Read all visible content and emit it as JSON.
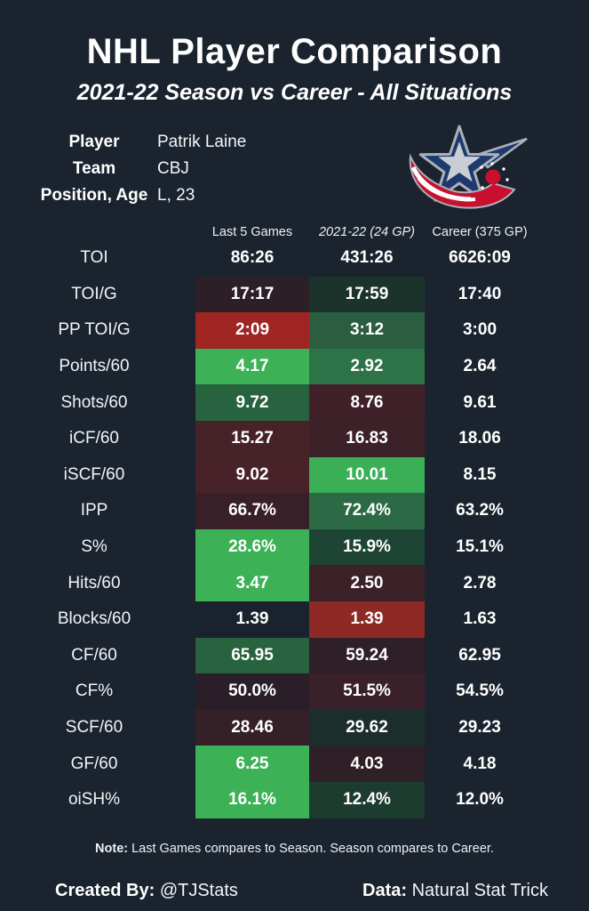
{
  "header": {
    "title": "NHL Player Comparison",
    "subtitle": "2021-22 Season vs Career - All Situations"
  },
  "player": {
    "label_player": "Player",
    "label_team": "Team",
    "label_position_age": "Position, Age",
    "name": "Patrik Laine",
    "team": "CBJ",
    "position_age": "L, 23",
    "logo_icon": "columbus-blue-jackets-logo"
  },
  "chart_data": {
    "type": "table",
    "title": "NHL Player Comparison",
    "subtitle": "2021-22 Season vs Career - All Situations",
    "columns": [
      "Last 5 Games",
      "2021-22 (24 GP)",
      "Career (375 GP)"
    ],
    "legend_note": "cell background encodes comparison: green = better, red = worse",
    "rows": [
      {
        "stat": "TOI",
        "last5": "86:26",
        "season": "431:26",
        "career": "6626:09",
        "last5_bg": "",
        "season_bg": ""
      },
      {
        "stat": "TOI/G",
        "last5": "17:17",
        "season": "17:59",
        "career": "17:40",
        "last5_bg": "#2c1f28",
        "season_bg": "#1c332c"
      },
      {
        "stat": "PP TOI/G",
        "last5": "2:09",
        "season": "3:12",
        "career": "3:00",
        "last5_bg": "#9e2522",
        "season_bg": "#2b5e41"
      },
      {
        "stat": "Points/60",
        "last5": "4.17",
        "season": "2.92",
        "career": "2.64",
        "last5_bg": "#3cb156",
        "season_bg": "#2d7347"
      },
      {
        "stat": "Shots/60",
        "last5": "9.72",
        "season": "8.76",
        "career": "9.61",
        "last5_bg": "#27633f",
        "season_bg": "#402129"
      },
      {
        "stat": "iCF/60",
        "last5": "15.27",
        "season": "16.83",
        "career": "18.06",
        "last5_bg": "#462329",
        "season_bg": "#3d2129"
      },
      {
        "stat": "iSCF/60",
        "last5": "9.02",
        "season": "10.01",
        "career": "8.15",
        "last5_bg": "#472329",
        "season_bg": "#3aaf55"
      },
      {
        "stat": "IPP",
        "last5": "66.7%",
        "season": "72.4%",
        "career": "63.2%",
        "last5_bg": "#392028",
        "season_bg": "#2c6a45"
      },
      {
        "stat": "S%",
        "last5": "28.6%",
        "season": "15.9%",
        "career": "15.1%",
        "last5_bg": "#3cb156",
        "season_bg": "#1e4533"
      },
      {
        "stat": "Hits/60",
        "last5": "3.47",
        "season": "2.50",
        "career": "2.78",
        "last5_bg": "#3cb156",
        "season_bg": "#3c2128"
      },
      {
        "stat": "Blocks/60",
        "last5": "1.39",
        "season": "1.39",
        "career": "1.63",
        "last5_bg": "#1a222d",
        "season_bg": "#8e2a25"
      },
      {
        "stat": "CF/60",
        "last5": "65.95",
        "season": "59.24",
        "career": "62.95",
        "last5_bg": "#27633f",
        "season_bg": "#2f1f28"
      },
      {
        "stat": "CF%",
        "last5": "50.0%",
        "season": "51.5%",
        "career": "54.5%",
        "last5_bg": "#2a1e28",
        "season_bg": "#3a2129"
      },
      {
        "stat": "SCF/60",
        "last5": "28.46",
        "season": "29.62",
        "career": "29.23",
        "last5_bg": "#362028",
        "season_bg": "#1b2e2b"
      },
      {
        "stat": "GF/60",
        "last5": "6.25",
        "season": "4.03",
        "career": "4.18",
        "last5_bg": "#3cb156",
        "season_bg": "#2f1f27"
      },
      {
        "stat": "oiSH%",
        "last5": "16.1%",
        "season": "12.4%",
        "career": "12.0%",
        "last5_bg": "#3cb156",
        "season_bg": "#1c3c2f"
      }
    ]
  },
  "footer": {
    "note_label": "Note:",
    "note_text": " Last Games compares to Season. Season compares to Career.",
    "created_by_label": "Created By:",
    "created_by_value": " @TJStats",
    "data_label": "Data:",
    "data_value": " Natural Stat Trick"
  },
  "colors": {
    "background": "#1a232e",
    "positive_bright": "#3cb156",
    "negative_bright": "#9e2522",
    "logo_navy": "#1e3a6d",
    "logo_red": "#c8102e",
    "logo_silver": "#c9ced6"
  }
}
